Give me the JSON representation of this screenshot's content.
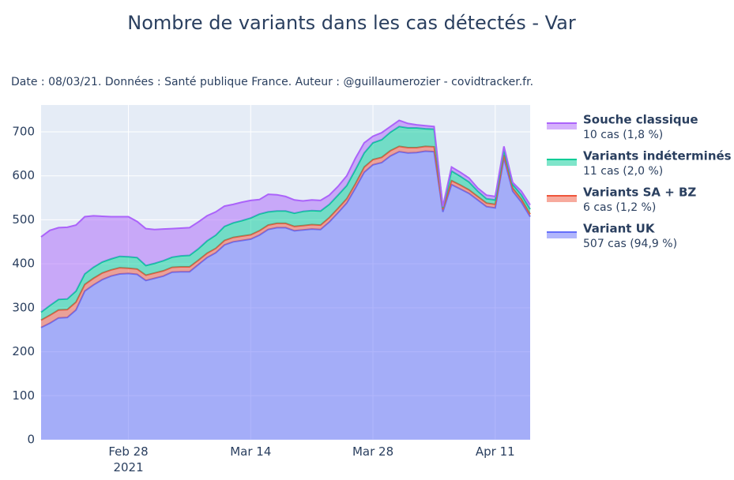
{
  "chart_data": {
    "type": "stacked_area",
    "title": "Nombre de variants dans les cas détectés - Var",
    "subtitle": "Date : 08/03/21. Données : Santé publique France. Auteur : @guillaumerozier - covidtracker.fr.",
    "x": [
      "2021-02-18",
      "2021-02-19",
      "2021-02-20",
      "2021-02-21",
      "2021-02-22",
      "2021-02-23",
      "2021-02-24",
      "2021-02-25",
      "2021-02-26",
      "2021-02-27",
      "2021-02-28",
      "2021-03-01",
      "2021-03-02",
      "2021-03-03",
      "2021-03-04",
      "2021-03-05",
      "2021-03-06",
      "2021-03-07",
      "2021-03-08",
      "2021-03-09",
      "2021-03-10",
      "2021-03-11",
      "2021-03-12",
      "2021-03-13",
      "2021-03-14",
      "2021-03-15",
      "2021-03-16",
      "2021-03-17",
      "2021-03-18",
      "2021-03-19",
      "2021-03-20",
      "2021-03-21",
      "2021-03-22",
      "2021-03-23",
      "2021-03-24",
      "2021-03-25",
      "2021-03-26",
      "2021-03-27",
      "2021-03-28",
      "2021-03-29",
      "2021-03-30",
      "2021-03-31",
      "2021-04-01",
      "2021-04-02",
      "2021-04-03",
      "2021-04-04",
      "2021-04-05",
      "2021-04-06",
      "2021-04-07",
      "2021-04-08",
      "2021-04-09",
      "2021-04-10",
      "2021-04-11",
      "2021-04-12",
      "2021-04-13",
      "2021-04-14",
      "2021-04-15"
    ],
    "series": [
      {
        "name": "Variant UK",
        "detail": "507 cas (94,9 %)",
        "color": "#636efa",
        "values": [
          255,
          265,
          277,
          278,
          295,
          338,
          352,
          364,
          372,
          377,
          378,
          376,
          362,
          367,
          372,
          381,
          382,
          382,
          398,
          414,
          425,
          443,
          450,
          453,
          456,
          465,
          478,
          482,
          482,
          475,
          477,
          479,
          478,
          495,
          516,
          538,
          572,
          608,
          625,
          630,
          645,
          655,
          652,
          653,
          656,
          655,
          518,
          580,
          570,
          560,
          545,
          530,
          527,
          640,
          565,
          540,
          507
        ]
      },
      {
        "name": "Variants SA + BZ",
        "detail": "6 cas (1,2 %)",
        "color": "#ef553b",
        "values": [
          17,
          18,
          18,
          18,
          18,
          15,
          15,
          15,
          14,
          14,
          12,
          12,
          12,
          12,
          12,
          11,
          11,
          11,
          10,
          10,
          10,
          10,
          10,
          10,
          10,
          10,
          10,
          10,
          10,
          10,
          10,
          10,
          10,
          10,
          10,
          10,
          10,
          12,
          12,
          12,
          12,
          12,
          12,
          11,
          11,
          11,
          6,
          9,
          9,
          8,
          8,
          8,
          8,
          8,
          7,
          7,
          6
        ]
      },
      {
        "name": "Variants indéterminés",
        "detail": "11 cas (2,0 %)",
        "color": "#00cc96",
        "values": [
          18,
          22,
          24,
          24,
          25,
          24,
          25,
          25,
          25,
          26,
          26,
          26,
          22,
          22,
          23,
          23,
          25,
          26,
          26,
          28,
          30,
          32,
          33,
          35,
          38,
          38,
          30,
          28,
          28,
          30,
          32,
          32,
          32,
          30,
          30,
          30,
          32,
          32,
          38,
          40,
          42,
          45,
          45,
          45,
          40,
          40,
          4,
          22,
          20,
          18,
          12,
          10,
          10,
          12,
          8,
          10,
          11
        ]
      },
      {
        "name": "Souche classique",
        "detail": "10 cas (1,8 %)",
        "color": "#ab63fa",
        "values": [
          171,
          171,
          163,
          163,
          150,
          130,
          117,
          104,
          96,
          90,
          91,
          82,
          84,
          77,
          72,
          65,
          63,
          63,
          61,
          57,
          53,
          46,
          42,
          42,
          40,
          33,
          40,
          37,
          33,
          30,
          24,
          24,
          24,
          21,
          20,
          22,
          26,
          23,
          15,
          16,
          13,
          14,
          10,
          7,
          7,
          6,
          2,
          9,
          9,
          9,
          7,
          8,
          8,
          7,
          5,
          8,
          10
        ]
      }
    ],
    "xlim": [
      "2021-02-18",
      "2021-04-15"
    ],
    "xticks": [
      {
        "value": "2021-02-28",
        "label": "Feb 28\n2021"
      },
      {
        "value": "2021-03-14",
        "label": "Mar 14"
      },
      {
        "value": "2021-03-28",
        "label": "Mar 28"
      },
      {
        "value": "2021-04-11",
        "label": "Apr 11"
      }
    ],
    "ylim": [
      0,
      761
    ],
    "yticks": [
      0,
      100,
      200,
      300,
      400,
      500,
      600,
      700
    ],
    "grid": true
  }
}
